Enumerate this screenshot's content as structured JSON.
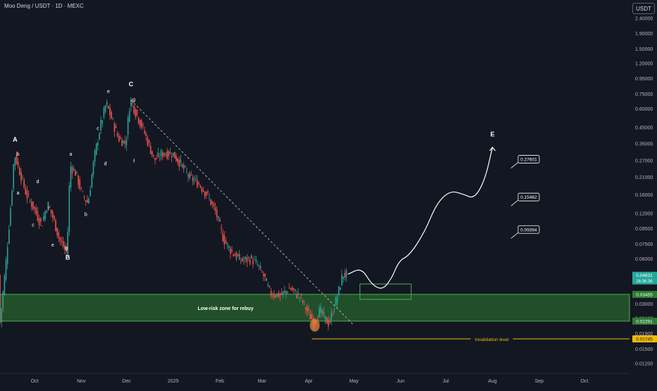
{
  "header": {
    "symbol_title": "Moo Deng / USDT · 1D · MEXC",
    "currency_label": "USDT"
  },
  "colors": {
    "background": "#131722",
    "up_candle": "#26a69a",
    "down_candle": "#ef5350",
    "zone_fill": "#2e7d32",
    "zone_border": "#4caf50",
    "invalidation": "#f0b90b",
    "axis_text": "#b2b5be"
  },
  "chart_data": {
    "type": "candlestick",
    "scale": "log",
    "ylim": [
      0.0105,
      2.9
    ],
    "xlim": [
      "2024-09-08",
      "2025-10-31"
    ],
    "y_ticks": [
      "2.40000",
      "1.90000",
      "1.50000",
      "1.20000",
      "0.95000",
      "0.75000",
      "0.60000",
      "0.45000",
      "0.35000",
      "0.27000",
      "0.21000",
      "0.16000",
      "0.12000",
      "0.09500",
      "0.07500",
      "0.06000",
      "0.04500",
      "0.03000",
      "0.02400",
      "0.01900",
      "0.01500",
      "0.01200"
    ],
    "x_ticks": [
      {
        "label": "Oct",
        "date": "2024-10-01"
      },
      {
        "label": "Nov",
        "date": "2024-11-01"
      },
      {
        "label": "Dec",
        "date": "2024-12-01"
      },
      {
        "label": "2025",
        "date": "2025-01-01"
      },
      {
        "label": "Feb",
        "date": "2025-02-01"
      },
      {
        "label": "Mar",
        "date": "2025-03-01"
      },
      {
        "label": "Apr",
        "date": "2025-04-01"
      },
      {
        "label": "May",
        "date": "2025-05-01"
      },
      {
        "label": "Jun",
        "date": "2025-06-01"
      },
      {
        "label": "Jul",
        "date": "2025-07-01"
      },
      {
        "label": "Aug",
        "date": "2025-08-01"
      },
      {
        "label": "Sep",
        "date": "2025-09-01"
      },
      {
        "label": "Oct",
        "date": "2025-10-01"
      }
    ],
    "price_path": [
      [
        "2024-09-08",
        0.02
      ],
      [
        "2024-09-12",
        0.05
      ],
      [
        "2024-09-16",
        0.15
      ],
      [
        "2024-09-18",
        0.3
      ],
      [
        "2024-09-22",
        0.22
      ],
      [
        "2024-09-26",
        0.16
      ],
      [
        "2024-10-01",
        0.13
      ],
      [
        "2024-10-06",
        0.1
      ],
      [
        "2024-10-10",
        0.14
      ],
      [
        "2024-10-14",
        0.11
      ],
      [
        "2024-10-18",
        0.08
      ],
      [
        "2024-10-23",
        0.065
      ],
      [
        "2024-10-25",
        0.25
      ],
      [
        "2024-10-29",
        0.22
      ],
      [
        "2024-11-02",
        0.16
      ],
      [
        "2024-11-06",
        0.14
      ],
      [
        "2024-11-10",
        0.28
      ],
      [
        "2024-11-14",
        0.45
      ],
      [
        "2024-11-18",
        0.65
      ],
      [
        "2024-11-22",
        0.5
      ],
      [
        "2024-11-26",
        0.38
      ],
      [
        "2024-12-01",
        0.35
      ],
      [
        "2024-12-04",
        0.7
      ],
      [
        "2024-12-08",
        0.55
      ],
      [
        "2024-12-12",
        0.45
      ],
      [
        "2024-12-16",
        0.35
      ],
      [
        "2024-12-20",
        0.27
      ],
      [
        "2024-12-25",
        0.3
      ],
      [
        "2025-01-01",
        0.3
      ],
      [
        "2025-01-06",
        0.26
      ],
      [
        "2025-01-12",
        0.21
      ],
      [
        "2025-01-18",
        0.19
      ],
      [
        "2025-01-24",
        0.16
      ],
      [
        "2025-01-30",
        0.12
      ],
      [
        "2025-02-04",
        0.08
      ],
      [
        "2025-02-10",
        0.065
      ],
      [
        "2025-02-16",
        0.058
      ],
      [
        "2025-02-22",
        0.06
      ],
      [
        "2025-02-26",
        0.055
      ],
      [
        "2025-03-03",
        0.045
      ],
      [
        "2025-03-07",
        0.035
      ],
      [
        "2025-03-14",
        0.034
      ],
      [
        "2025-03-20",
        0.038
      ],
      [
        "2025-03-27",
        0.033
      ],
      [
        "2025-04-01",
        0.026
      ],
      [
        "2025-04-05",
        0.0225
      ],
      [
        "2025-04-09",
        0.027
      ],
      [
        "2025-04-12",
        0.024
      ],
      [
        "2025-04-15",
        0.022
      ],
      [
        "2025-04-18",
        0.028
      ],
      [
        "2025-04-21",
        0.035
      ],
      [
        "2025-04-24",
        0.047
      ],
      [
        "2025-04-26",
        0.0463
      ]
    ],
    "zone": {
      "label": "Low-risk zone for rebuy",
      "y_top": 0.03455,
      "y_bottom": 0.02291,
      "from": "2024-09-08",
      "to": "2025-10-31"
    },
    "entry_box": {
      "y_top": 0.0405,
      "y_bottom": 0.032,
      "from": "2025-05-05",
      "to": "2025-06-08"
    },
    "invalidation": {
      "label": "Invalidation level",
      "y": 0.01745,
      "from": "2025-04-03"
    },
    "projection": [
      [
        "2025-04-27",
        0.047
      ],
      [
        "2025-05-06",
        0.052
      ],
      [
        "2025-05-13",
        0.04
      ],
      [
        "2025-05-20",
        0.037
      ],
      [
        "2025-05-26",
        0.044
      ],
      [
        "2025-05-31",
        0.058
      ],
      [
        "2025-06-07",
        0.063
      ],
      [
        "2025-06-17",
        0.09
      ],
      [
        "2025-06-25",
        0.14
      ],
      [
        "2025-07-04",
        0.17
      ],
      [
        "2025-07-13",
        0.16
      ],
      [
        "2025-07-20",
        0.15
      ],
      [
        "2025-07-27",
        0.2
      ],
      [
        "2025-08-01",
        0.33
      ]
    ],
    "targets": [
      {
        "label": "0.27601",
        "value": 0.27601
      },
      {
        "label": "0.15462",
        "value": 0.15462
      },
      {
        "label": "0.09394",
        "value": 0.09394
      }
    ],
    "trendline": {
      "from": [
        "2024-12-04",
        0.68
      ],
      "to": [
        "2025-05-01",
        0.0215
      ]
    },
    "wave_labels_major": [
      {
        "text": "A",
        "date": "2024-09-18",
        "value": 0.36
      },
      {
        "text": "B",
        "date": "2024-10-23",
        "value": 0.059
      },
      {
        "text": "C",
        "date": "2024-12-04",
        "value": 0.84
      },
      {
        "text": "E",
        "date": "2025-08-01",
        "value": 0.39
      }
    ],
    "wave_labels_minor": [
      {
        "text": "b",
        "date": "2024-09-20",
        "value": 0.29
      },
      {
        "text": "a",
        "date": "2024-09-20",
        "value": 0.16
      },
      {
        "text": "d",
        "date": "2024-10-03",
        "value": 0.19
      },
      {
        "text": "c",
        "date": "2024-09-30",
        "value": 0.098
      },
      {
        "text": "f",
        "date": "2024-10-10",
        "value": 0.125
      },
      {
        "text": "e",
        "date": "2024-10-13",
        "value": 0.072
      },
      {
        "text": "g",
        "date": "2024-10-22",
        "value": 0.069
      },
      {
        "text": "a",
        "date": "2024-10-25",
        "value": 0.29
      },
      {
        "text": "b",
        "date": "2024-11-04",
        "value": 0.115
      },
      {
        "text": "c",
        "date": "2024-11-12",
        "value": 0.43
      },
      {
        "text": "d",
        "date": "2024-11-17",
        "value": 0.25
      },
      {
        "text": "e",
        "date": "2024-11-19",
        "value": 0.76
      },
      {
        "text": "f",
        "date": "2024-12-06",
        "value": 0.26
      },
      {
        "text": "g",
        "date": "2024-12-06",
        "value": 0.67
      }
    ],
    "price_tags": [
      {
        "label": "0.04631",
        "sub": "16:36:36",
        "value": 0.04631,
        "kind": "current"
      },
      {
        "label": "0.03455",
        "value": 0.03455,
        "kind": "zone"
      },
      {
        "label": "0.02291",
        "value": 0.02291,
        "kind": "zone"
      },
      {
        "label": "0.01745",
        "value": 0.01745,
        "kind": "invalidation"
      }
    ]
  }
}
